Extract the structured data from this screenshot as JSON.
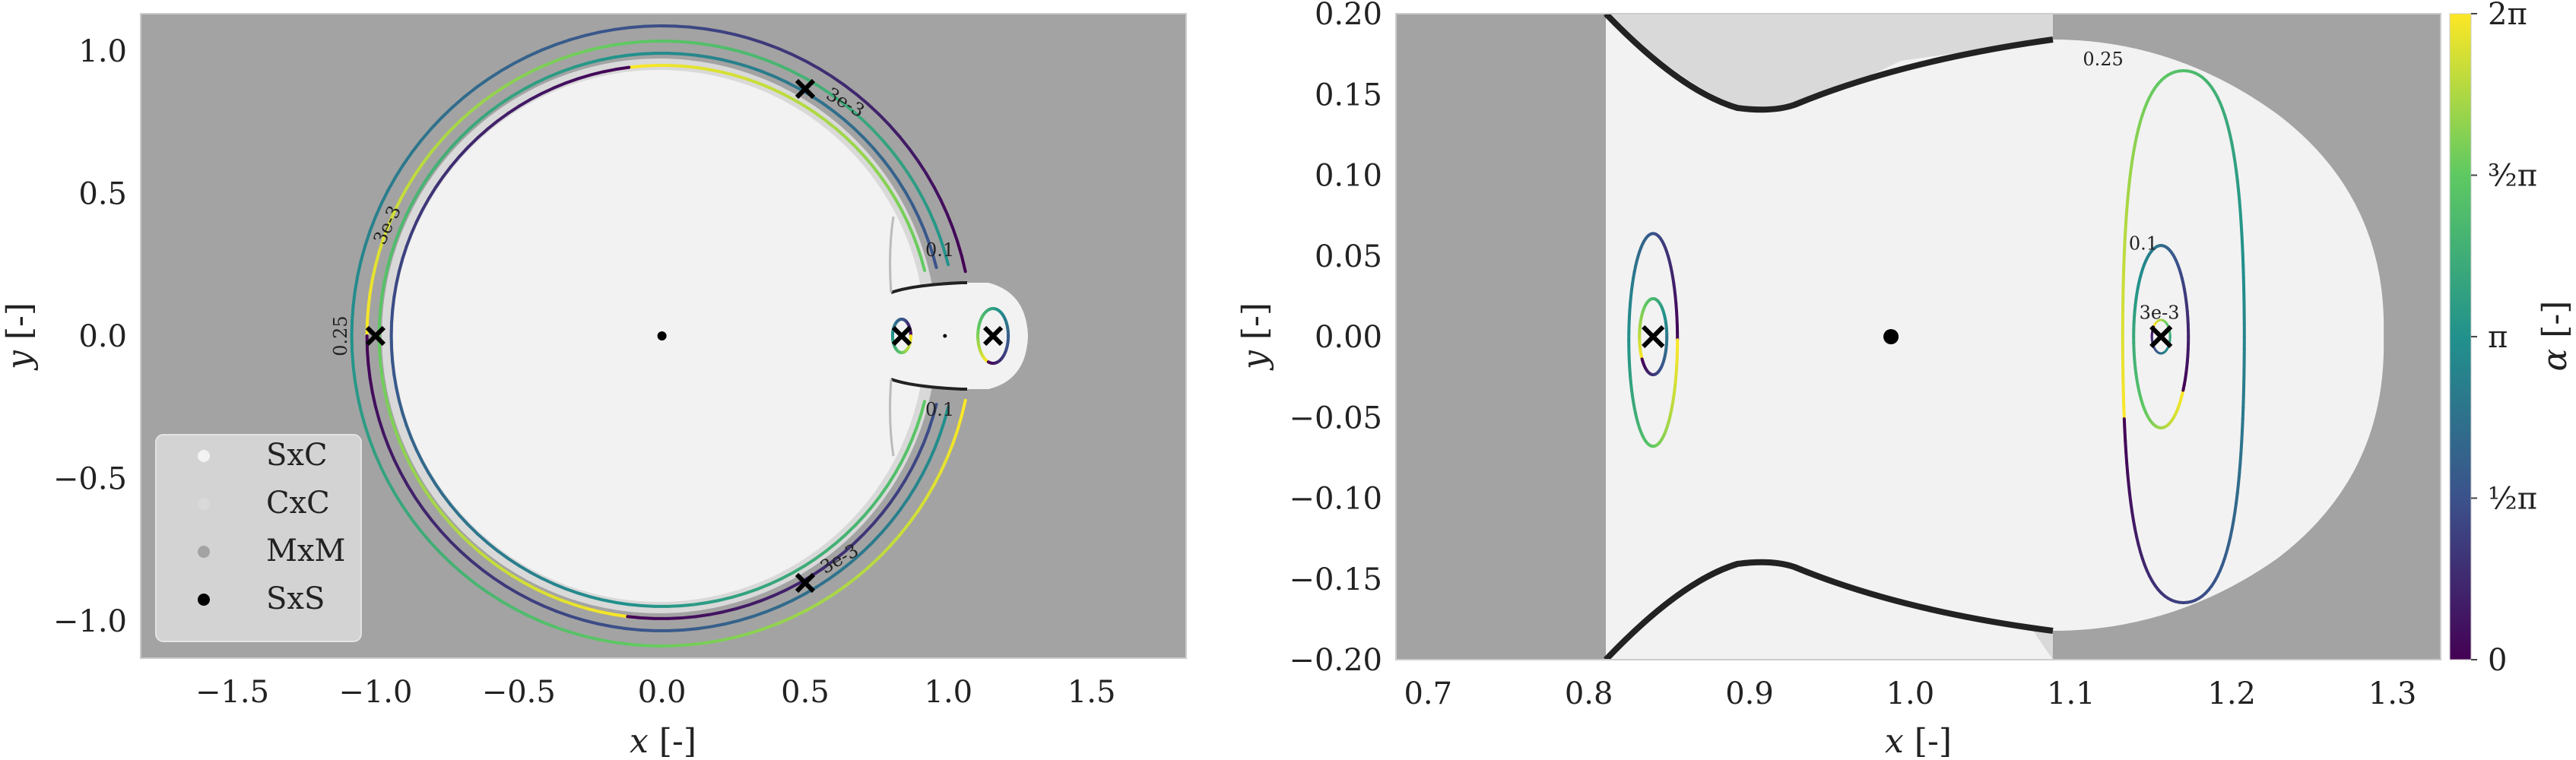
{
  "colors": {
    "mxm_region": "#a3a3a3",
    "cxc_region": "#d9d9d9",
    "sxc_region": "#f2f2f2",
    "boundary": "#222222",
    "background": "#ffffff",
    "colormap": "viridis",
    "colormap_stops": [
      "#440154",
      "#3b528b",
      "#21918c",
      "#5ec962",
      "#fde725"
    ]
  },
  "chart_data": [
    {
      "type": "contour",
      "xlabel": "x [-]",
      "ylabel": "y [-]",
      "xlim": [
        -1.82,
        1.83
      ],
      "ylim": [
        -1.13,
        1.13
      ],
      "xticks": [
        -1.5,
        -1.0,
        -0.5,
        0.0,
        0.5,
        1.0,
        1.5
      ],
      "xticklabels": [
        "−1.5",
        "−1.0",
        "−0.5",
        "0.0",
        "0.5",
        "1.0",
        "1.5"
      ],
      "yticks": [
        -1.0,
        -0.5,
        0.0,
        0.5,
        1.0
      ],
      "yticklabels": [
        "−1.0",
        "−0.5",
        "0.0",
        "0.5",
        "1.0"
      ],
      "grid": false,
      "legend": {
        "placement": "lower-left",
        "entries": [
          {
            "label": "SxC",
            "color": "#f2f2f2"
          },
          {
            "label": "CxC",
            "color": "#d9d9d9"
          },
          {
            "label": "MxM",
            "color": "#a3a3a3"
          },
          {
            "label": "SxS",
            "color": "#000000"
          }
        ]
      },
      "primary_body": [
        0.0,
        0.0
      ],
      "secondary_body": [
        0.988,
        0.0
      ],
      "markers_x": [
        [
          -1.0,
          0.0
        ],
        [
          0.5,
          0.866
        ],
        [
          0.5,
          -0.866
        ],
        [
          0.837,
          0.0
        ],
        [
          1.156,
          0.0
        ]
      ],
      "contour_levels": [
        {
          "label": "0.25",
          "at": [
            -1.1,
            0.0
          ]
        },
        {
          "label": "3e-3",
          "at": [
            -0.94,
            0.38
          ]
        },
        {
          "label": "3e-3",
          "at": [
            0.63,
            0.8
          ]
        },
        {
          "label": "3e-3",
          "at": [
            0.63,
            -0.8
          ]
        },
        {
          "label": "0.1",
          "at": [
            0.97,
            0.28
          ]
        },
        {
          "label": "0.1",
          "at": [
            0.97,
            -0.28
          ]
        }
      ],
      "colorbar_value_range": [
        0,
        6.283
      ]
    },
    {
      "type": "contour",
      "xlabel": "x [-]",
      "ylabel": "y [-]",
      "xlim": [
        0.68,
        1.33
      ],
      "ylim": [
        -0.2,
        0.2
      ],
      "xticks": [
        0.7,
        0.8,
        0.9,
        1.0,
        1.1,
        1.2,
        1.3
      ],
      "xticklabels": [
        "0.7",
        "0.8",
        "0.9",
        "1.0",
        "1.1",
        "1.2",
        "1.3"
      ],
      "yticks": [
        -0.2,
        -0.15,
        -0.1,
        -0.05,
        0.0,
        0.05,
        0.1,
        0.15,
        0.2
      ],
      "yticklabels": [
        "−0.20",
        "−0.15",
        "−0.10",
        "−0.05",
        "0.00",
        "0.05",
        "0.10",
        "0.15",
        "0.20"
      ],
      "grid": false,
      "secondary_body": [
        0.988,
        0.0
      ],
      "markers_x": [
        [
          0.84,
          0.0
        ],
        [
          1.156,
          0.0
        ]
      ],
      "contour_levels": [
        {
          "label": "0.25",
          "at": [
            1.12,
            0.168
          ]
        },
        {
          "label": "0.1",
          "at": [
            1.145,
            0.054
          ]
        },
        {
          "label": "3e-3",
          "at": [
            1.155,
            0.011
          ]
        }
      ],
      "colorbar": {
        "label": "α [-]",
        "range": [
          0,
          6.283
        ],
        "ticks": [
          {
            "value": 0,
            "label": "0"
          },
          {
            "value": 1.571,
            "label": "½π"
          },
          {
            "value": 3.142,
            "label": "π"
          },
          {
            "value": 4.712,
            "label": "³⁄₂π"
          },
          {
            "value": 6.283,
            "label": "2π"
          }
        ]
      }
    }
  ]
}
